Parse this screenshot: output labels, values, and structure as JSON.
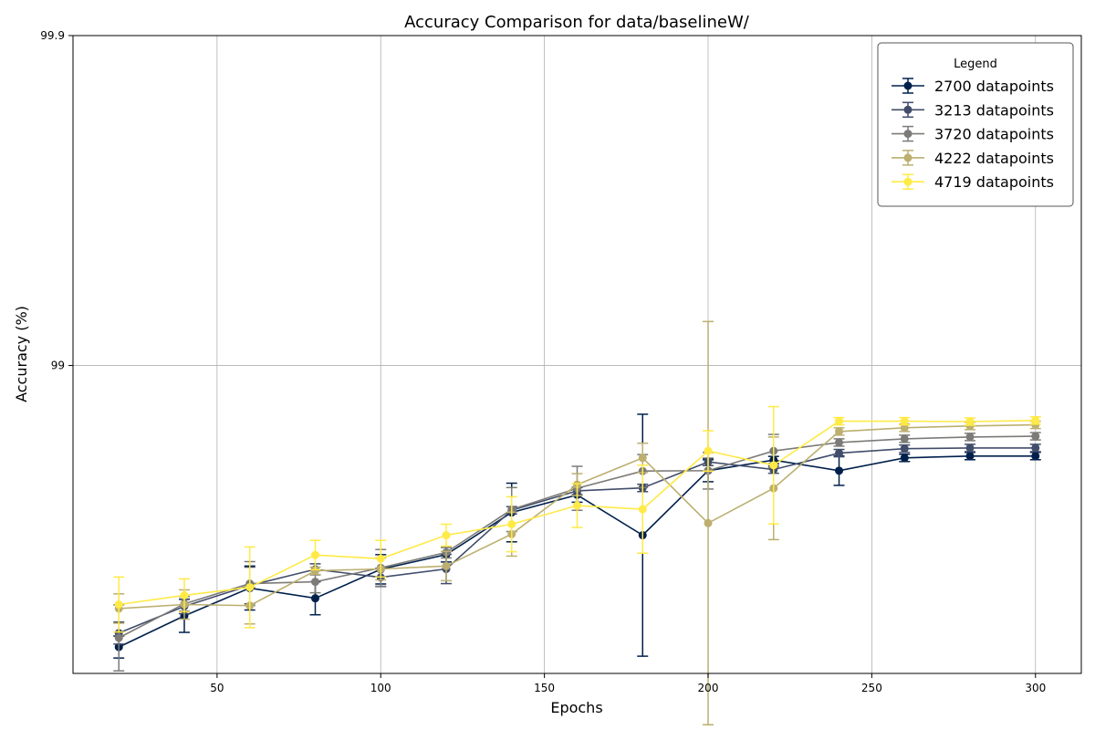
{
  "chart_data": {
    "type": "line",
    "title": "Accuracy Comparison for data/baselineW/",
    "xlabel": "Epochs",
    "ylabel": "Accuracy (%)",
    "x_ticks": [
      50,
      100,
      150,
      200,
      250,
      300
    ],
    "y_ticks": [
      99,
      99.9
    ],
    "y_tick_labels": [
      "99",
      "99.9"
    ],
    "xlim": [
      6,
      314
    ],
    "ylim": [
      98.16,
      99.9
    ],
    "grid": true,
    "legend": {
      "title": "Legend",
      "placement": "top-right"
    },
    "x": [
      20,
      40,
      60,
      80,
      100,
      120,
      140,
      160,
      180,
      200,
      220,
      240,
      260,
      280,
      300
    ],
    "series": [
      {
        "name": "2700 datapoints",
        "color": "#00204c",
        "values": [
          98.232,
          98.317,
          98.393,
          98.365,
          98.444,
          98.484,
          98.599,
          98.647,
          98.537,
          98.713,
          98.742,
          98.713,
          98.748,
          98.753,
          98.753
        ],
        "errors": [
          0.03,
          0.045,
          0.06,
          0.045,
          0.04,
          0.02,
          0.08,
          0.02,
          0.33,
          0.03,
          0.01,
          0.04,
          0.01,
          0.01,
          0.01
        ]
      },
      {
        "name": "3213 datapoints",
        "color": "#414d6b",
        "values": [
          98.27,
          98.343,
          98.4,
          98.444,
          98.422,
          98.445,
          98.605,
          98.658,
          98.666,
          98.737,
          98.716,
          98.761,
          98.773,
          98.775,
          98.775
        ],
        "errors": [
          0.03,
          0.02,
          0.05,
          0.015,
          0.025,
          0.04,
          0.01,
          0.01,
          0.01,
          0.01,
          0.01,
          0.01,
          0.01,
          0.01,
          0.01
        ]
      },
      {
        "name": "3720 datapoints",
        "color": "#7c7b78",
        "values": [
          98.257,
          98.35,
          98.405,
          98.41,
          98.448,
          98.49,
          98.607,
          98.665,
          98.712,
          98.713,
          98.767,
          98.79,
          98.8,
          98.805,
          98.807
        ],
        "errors": [
          0.09,
          0.02,
          0.06,
          0.03,
          0.05,
          0.015,
          0.06,
          0.06,
          0.045,
          0.05,
          0.045,
          0.01,
          0.01,
          0.01,
          0.01
        ]
      },
      {
        "name": "4222 datapoints",
        "color": "#bcaf6f",
        "values": [
          98.337,
          98.348,
          98.345,
          98.44,
          98.445,
          98.453,
          98.54,
          98.675,
          98.748,
          98.57,
          98.665,
          98.82,
          98.83,
          98.835,
          98.838
        ],
        "errors": [
          0.04,
          0.04,
          0.05,
          0.01,
          0.03,
          0.04,
          0.06,
          0.03,
          0.04,
          0.55,
          0.14,
          0.01,
          0.01,
          0.01,
          0.01
        ]
      },
      {
        "name": "4719 datapoints",
        "color": "#ffea46",
        "values": [
          98.348,
          98.373,
          98.395,
          98.483,
          98.473,
          98.537,
          98.567,
          98.618,
          98.608,
          98.767,
          98.728,
          98.848,
          98.848,
          98.847,
          98.85
        ],
        "errors": [
          0.075,
          0.045,
          0.11,
          0.04,
          0.05,
          0.03,
          0.075,
          0.06,
          0.12,
          0.055,
          0.16,
          0.01,
          0.01,
          0.01,
          0.01
        ]
      }
    ]
  }
}
